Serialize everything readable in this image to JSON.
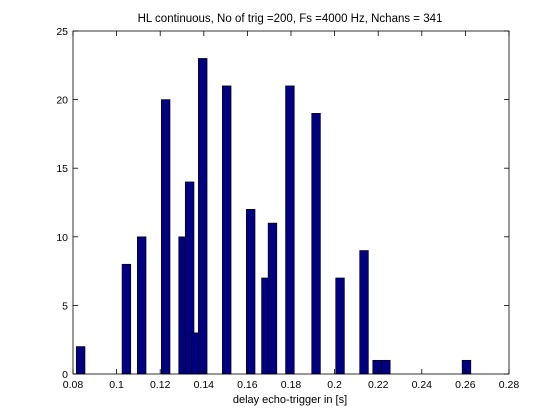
{
  "chart_data": {
    "type": "bar",
    "title": "HL continuous, No of trig =200, Fs =4000 Hz, Nchans = 341",
    "xlabel": "delay echo-trigger in [s]",
    "ylabel": "",
    "xlim": [
      0.08,
      0.28
    ],
    "ylim": [
      0,
      25
    ],
    "xticks": [
      0.08,
      0.1,
      0.12,
      0.14,
      0.16,
      0.18,
      0.2,
      0.22,
      0.24,
      0.26,
      0.28
    ],
    "xtick_labels": [
      "0.08",
      "0.1",
      "0.12",
      "0.14",
      "0.16",
      "0.18",
      "0.2",
      "0.22",
      "0.24",
      "0.26",
      "0.28"
    ],
    "yticks": [
      0,
      5,
      10,
      15,
      20,
      25
    ],
    "ytick_labels": [
      "0",
      "5",
      "10",
      "15",
      "20",
      "25"
    ],
    "bar_width": 0.004,
    "bar_color": "#000080",
    "bar_edge_color": "#000000",
    "grid": false,
    "box": true,
    "x": [
      0.0835,
      0.1045,
      0.1115,
      0.1225,
      0.1305,
      0.1335,
      0.1365,
      0.1395,
      0.1505,
      0.1615,
      0.1685,
      0.1715,
      0.1795,
      0.1915,
      0.2025,
      0.2135,
      0.2195,
      0.2235,
      0.2605
    ],
    "values": [
      2,
      8,
      10,
      20,
      10,
      14,
      3,
      23,
      21,
      12,
      7,
      11,
      21,
      19,
      7,
      9,
      1,
      1,
      1
    ]
  }
}
